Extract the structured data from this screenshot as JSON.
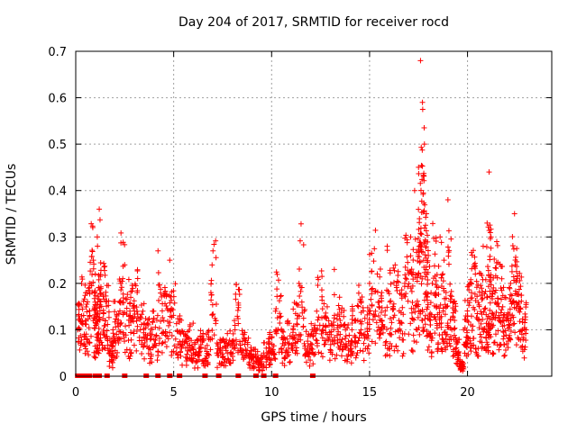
{
  "chart_data": {
    "type": "scatter",
    "title": "Day 204 of 2017, SRMTID for receiver rocd",
    "xlabel": "GPS time / hours",
    "ylabel": "SRMTID / TECUs",
    "xlim": [
      0,
      24.3
    ],
    "ylim": [
      0,
      0.7
    ],
    "xticks": [
      0,
      5,
      10,
      15,
      20
    ],
    "yticks": [
      0,
      0.1,
      0.2,
      0.3,
      0.4,
      0.5,
      0.6,
      0.7
    ],
    "grid": true,
    "marker": "+",
    "color": "#ff0000",
    "series": [
      {
        "name": "SRMTID",
        "x": [
          0.1,
          0.3,
          0.5,
          0.7,
          0.9,
          1.0,
          1.1,
          1.2,
          1.3,
          1.5,
          1.7,
          1.9,
          2.1,
          2.3,
          2.5,
          2.8,
          3.0,
          3.3,
          3.6,
          3.9,
          4.2,
          4.5,
          4.8,
          5.1,
          5.4,
          5.7,
          6.0,
          6.3,
          6.6,
          6.9,
          7.2,
          7.5,
          7.8,
          8.1,
          8.4,
          8.7,
          9.0,
          9.3,
          9.6,
          9.9,
          10.2,
          10.5,
          10.8,
          11.1,
          11.4,
          11.7,
          12.0,
          12.3,
          12.6,
          12.9,
          13.2,
          13.5,
          13.8,
          14.1,
          14.4,
          14.7,
          15.0,
          15.3,
          15.6,
          15.9,
          16.2,
          16.5,
          16.8,
          17.1,
          17.3,
          17.5,
          17.6,
          17.7,
          17.8,
          17.9,
          18.0,
          18.2,
          18.4,
          18.6,
          18.8,
          19.0,
          19.2,
          19.4,
          19.6,
          19.8,
          20.0,
          20.2,
          20.4,
          20.6,
          20.8,
          21.0,
          21.1,
          21.2,
          21.4,
          21.6,
          21.8,
          22.0,
          22.2,
          22.4,
          22.6,
          22.8
        ],
        "y": [
          0.1,
          0.13,
          0.12,
          0.2,
          0.25,
          0.22,
          0.3,
          0.36,
          0.15,
          0.12,
          0.05,
          0.1,
          0.13,
          0.2,
          0.24,
          0.12,
          0.14,
          0.1,
          0.08,
          0.09,
          0.27,
          0.12,
          0.25,
          0.08,
          0.06,
          0.07,
          0.05,
          0.06,
          0.06,
          0.18,
          0.05,
          0.06,
          0.07,
          0.12,
          0.06,
          0.05,
          0.04,
          0.03,
          0.05,
          0.06,
          0.14,
          0.06,
          0.08,
          0.1,
          0.2,
          0.06,
          0.07,
          0.14,
          0.1,
          0.08,
          0.23,
          0.09,
          0.07,
          0.1,
          0.12,
          0.09,
          0.2,
          0.14,
          0.12,
          0.28,
          0.15,
          0.12,
          0.2,
          0.3,
          0.4,
          0.45,
          0.68,
          0.59,
          0.5,
          0.35,
          0.26,
          0.2,
          0.15,
          0.3,
          0.25,
          0.38,
          0.1,
          0.05,
          0.02,
          0.1,
          0.13,
          0.18,
          0.22,
          0.15,
          0.28,
          0.33,
          0.44,
          0.3,
          0.18,
          0.15,
          0.12,
          0.13,
          0.2,
          0.35,
          0.15,
          0.1
        ],
        "zero_markers_x": [
          0.1,
          0.2,
          0.3,
          0.5,
          0.6,
          0.7,
          1.0,
          1.1,
          1.2,
          1.6,
          2.5,
          3.6,
          4.2,
          4.8,
          5.3,
          6.6,
          7.3,
          8.3,
          9.2,
          9.6,
          10.2,
          12.1
        ]
      }
    ]
  }
}
